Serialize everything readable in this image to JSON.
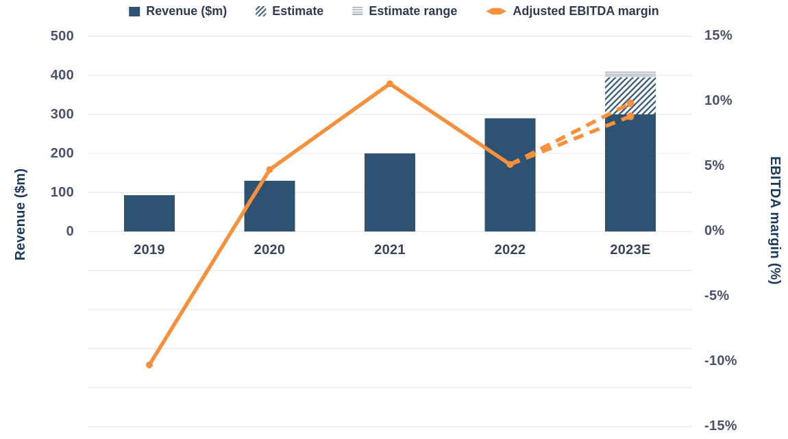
{
  "legend": {
    "items": [
      {
        "label": "Revenue ($m)",
        "swatch": "navy-square"
      },
      {
        "label": "Estimate",
        "swatch": "diagonal-hatch-square"
      },
      {
        "label": "Estimate range",
        "swatch": "horizontal-lines-square"
      },
      {
        "label": "Adjusted EBITDA margin",
        "swatch": "orange-diamond-marker"
      }
    ]
  },
  "axes": {
    "left": {
      "title": "Revenue ($m)",
      "tick_labels": [
        "500",
        "400",
        "300",
        "200",
        "100",
        "0"
      ],
      "tick_values": [
        500,
        400,
        300,
        200,
        100,
        0
      ]
    },
    "right": {
      "title": "EBITDA margin (%)",
      "tick_labels": [
        "15%",
        "10%",
        "5%",
        "0%",
        "-5%",
        "-10%",
        "-15%"
      ],
      "tick_values": [
        15,
        10,
        5,
        0,
        -5,
        -10,
        -15
      ]
    },
    "x": {
      "categories": [
        "2019",
        "2020",
        "2021",
        "2022",
        "2023E"
      ]
    }
  },
  "chart_data": {
    "type": "combo-bar-line",
    "title": "",
    "categories": [
      "2019",
      "2020",
      "2021",
      "2022",
      "2023E"
    ],
    "series": [
      {
        "name": "Revenue ($m)",
        "type": "bar",
        "axis": "left",
        "values": [
          93,
          130,
          200,
          290,
          300
        ]
      },
      {
        "name": "Estimate",
        "type": "bar-hatched-stack",
        "axis": "left",
        "base_values": [
          null,
          null,
          null,
          null,
          300
        ],
        "top_values": [
          null,
          null,
          null,
          null,
          395
        ]
      },
      {
        "name": "Estimate range",
        "type": "range-cap",
        "axis": "left",
        "values": [
          null,
          null,
          null,
          null,
          395
        ]
      },
      {
        "name": "Adjusted EBITDA margin",
        "type": "line",
        "axis": "right",
        "values": [
          -10.3,
          4.7,
          11.3,
          5.1,
          null
        ]
      },
      {
        "name": "Adjusted EBITDA margin (estimate)",
        "type": "dashed-line",
        "axis": "right",
        "from_category": "2022",
        "from_value": 5.1,
        "to_category": "2023E",
        "to_values": [
          8.8,
          9.8
        ]
      }
    ],
    "left_axis": {
      "label": "Revenue ($m)",
      "ticks": [
        0,
        100,
        200,
        300,
        400,
        500
      ],
      "shown_range": [
        -500,
        500
      ]
    },
    "right_axis": {
      "label": "EBITDA margin (%)",
      "ticks": [
        -15,
        -10,
        -5,
        0,
        5,
        10,
        15
      ],
      "range": [
        -15,
        15
      ]
    },
    "grid": "horizontal gridlines every 100 left-axis units (every 3 right-axis %), spanning -15% to 15%",
    "legend_position": "top-center"
  },
  "colors": {
    "bar": "#2E5271",
    "hatch": "#35597B",
    "line": "#F5913C",
    "grid": "#E5E6E8",
    "range": "#A6ACB5"
  }
}
